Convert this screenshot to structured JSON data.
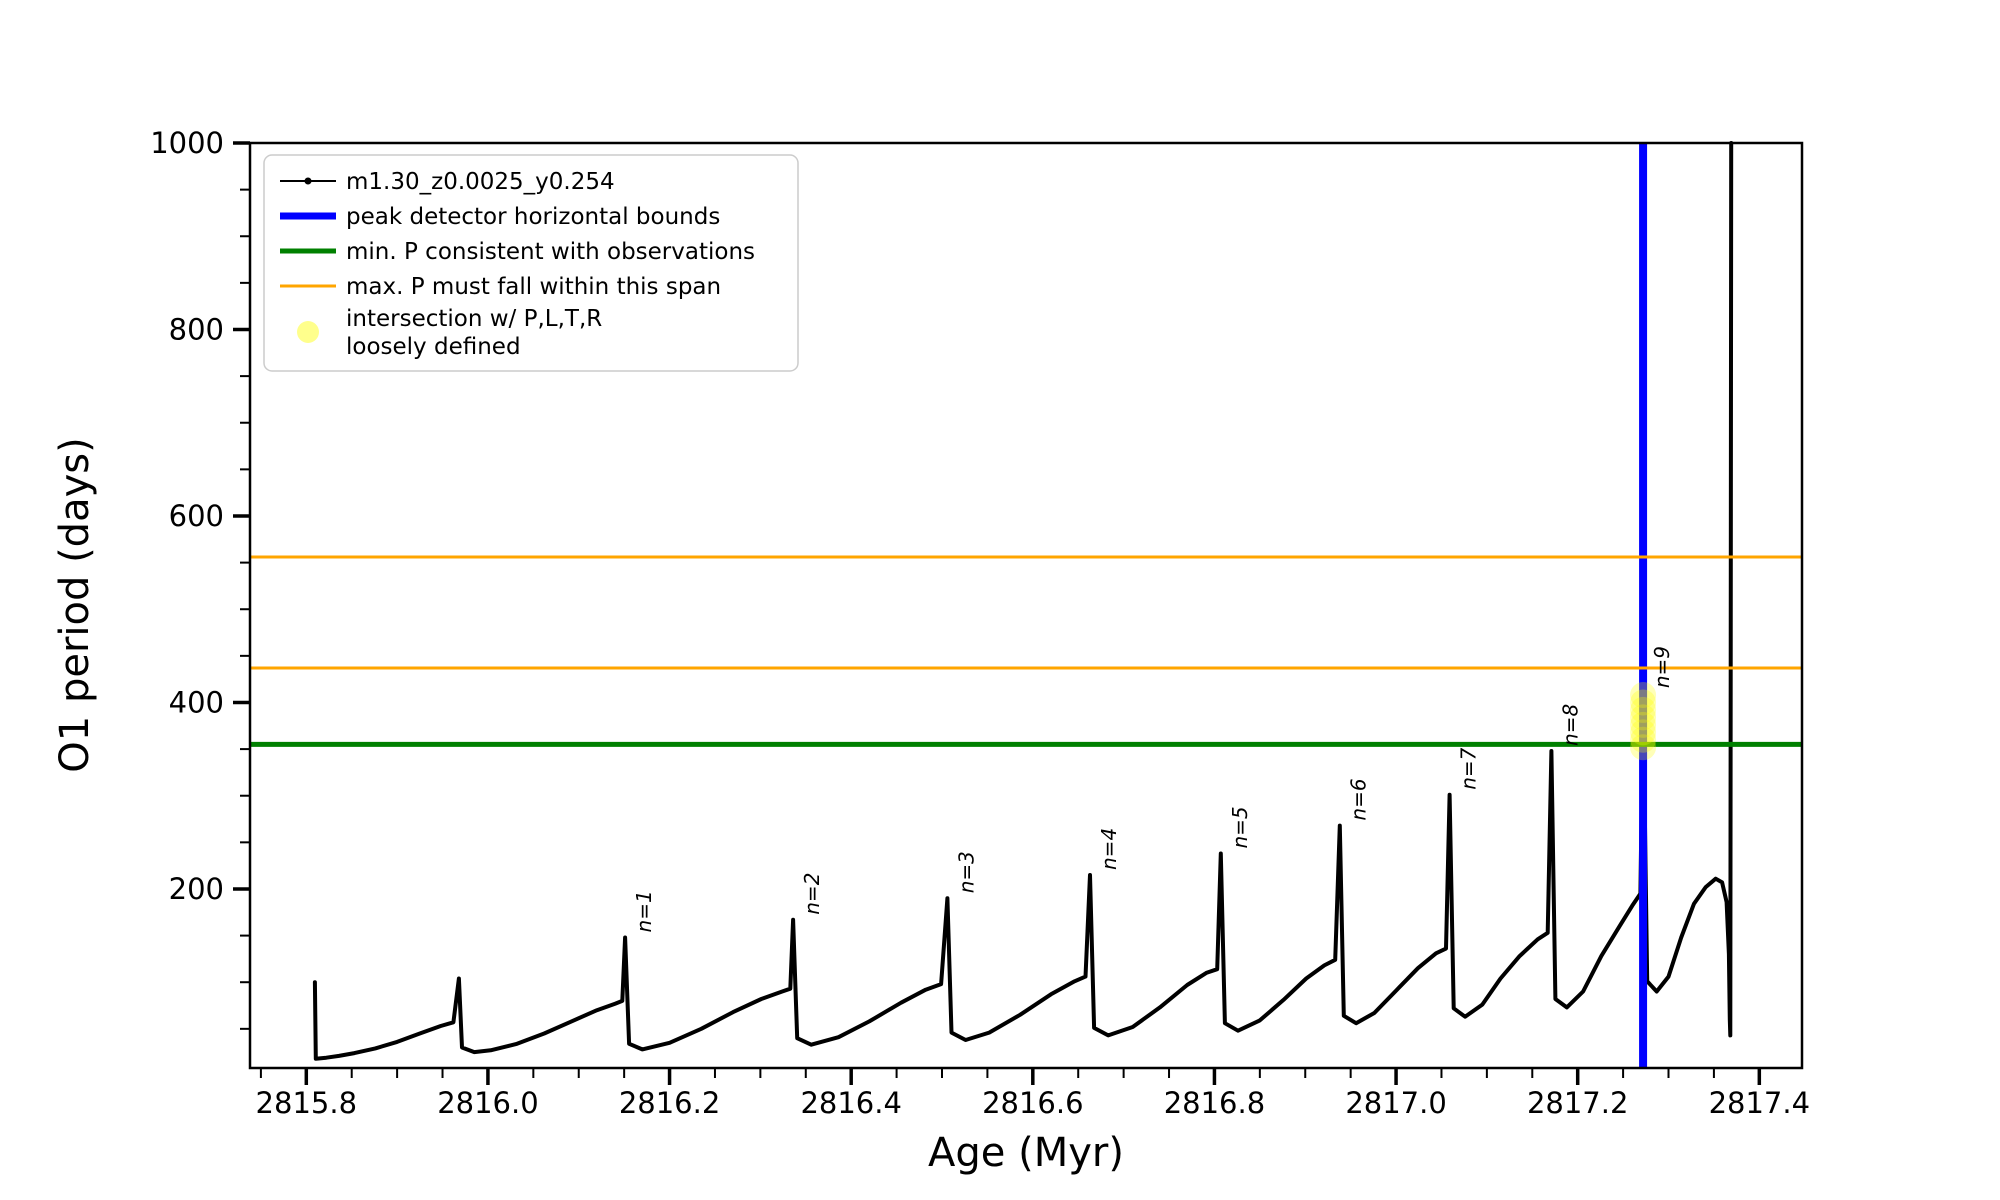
{
  "figure": {
    "xlabel": "Age (Myr)",
    "ylabel": "O1 period (days)",
    "background": "#ffffff",
    "spine_color": "#000000"
  },
  "axes": {
    "xlim": [
      2815.738,
      2817.447
    ],
    "ylim": [
      8,
      1000
    ],
    "x_major_ticks": [
      {
        "v": 2815.8,
        "label": "2815.8"
      },
      {
        "v": 2816.0,
        "label": "2816.0"
      },
      {
        "v": 2816.2,
        "label": "2816.2"
      },
      {
        "v": 2816.4,
        "label": "2816.4"
      },
      {
        "v": 2816.6,
        "label": "2816.6"
      },
      {
        "v": 2816.8,
        "label": "2816.8"
      },
      {
        "v": 2817.0,
        "label": "2817.0"
      },
      {
        "v": 2817.2,
        "label": "2817.2"
      },
      {
        "v": 2817.4,
        "label": "2817.4"
      }
    ],
    "x_minor_step": 0.05,
    "y_major_ticks": [
      {
        "v": 200,
        "label": "200"
      },
      {
        "v": 400,
        "label": "400"
      },
      {
        "v": 600,
        "label": "600"
      },
      {
        "v": 800,
        "label": "800"
      },
      {
        "v": 1000,
        "label": "1000"
      }
    ],
    "y_minor_step": 50,
    "grid": false
  },
  "legend": {
    "position": "upper-left",
    "items": [
      {
        "label": "m1.30_z0.0025_y0.254",
        "type": "line-dot",
        "color": "#000000",
        "lw": 2
      },
      {
        "label": "peak detector horizontal bounds",
        "type": "line",
        "color": "#0000ff",
        "lw": 7
      },
      {
        "label": "min. P consistent with observations",
        "type": "line",
        "color": "#008000",
        "lw": 5
      },
      {
        "label": "max. P must fall within this span",
        "type": "line",
        "color": "#ffa500",
        "lw": 3
      },
      {
        "label": "intersection w/ P,L,T,R\nloosely defined",
        "type": "marker",
        "color": "rgba(255,255,0,0.45)"
      }
    ]
  },
  "chart_data": {
    "type": "line",
    "title": "",
    "xlabel": "Age (Myr)",
    "ylabel": "O1 period (days)",
    "xlim": [
      2815.738,
      2817.447
    ],
    "ylim": [
      8,
      1000
    ],
    "series": [
      {
        "name": "m1.30_z0.0025_y0.254",
        "color": "#000000",
        "marker": "dot",
        "points": [
          [
            2815.8095,
            100
          ],
          [
            2815.8105,
            18
          ],
          [
            2815.822,
            19
          ],
          [
            2815.836,
            21
          ],
          [
            2815.853,
            24
          ],
          [
            2815.876,
            29
          ],
          [
            2815.9,
            36
          ],
          [
            2815.925,
            45
          ],
          [
            2815.948,
            53
          ],
          [
            2815.962,
            57
          ],
          [
            2815.968,
            104
          ],
          [
            2815.9715,
            30
          ],
          [
            2815.985,
            25
          ],
          [
            2816.003,
            27
          ],
          [
            2816.032,
            34
          ],
          [
            2816.062,
            45
          ],
          [
            2816.092,
            58
          ],
          [
            2816.12,
            70
          ],
          [
            2816.14,
            77
          ],
          [
            2816.148,
            80
          ],
          [
            2816.151,
            148
          ],
          [
            2816.1555,
            34
          ],
          [
            2816.17,
            28
          ],
          [
            2816.2,
            35
          ],
          [
            2816.235,
            50
          ],
          [
            2816.27,
            68
          ],
          [
            2816.301,
            82
          ],
          [
            2816.324,
            90
          ],
          [
            2816.333,
            93
          ],
          [
            2816.336,
            167
          ],
          [
            2816.3405,
            40
          ],
          [
            2816.356,
            33
          ],
          [
            2816.386,
            41
          ],
          [
            2816.42,
            58
          ],
          [
            2816.455,
            78
          ],
          [
            2816.482,
            92
          ],
          [
            2816.499,
            98
          ],
          [
            2816.506,
            190
          ],
          [
            2816.5105,
            46
          ],
          [
            2816.526,
            38
          ],
          [
            2816.552,
            46
          ],
          [
            2816.586,
            65
          ],
          [
            2816.62,
            87
          ],
          [
            2816.646,
            101
          ],
          [
            2816.658,
            106
          ],
          [
            2816.663,
            215
          ],
          [
            2816.6675,
            51
          ],
          [
            2816.683,
            43
          ],
          [
            2816.71,
            52
          ],
          [
            2816.74,
            73
          ],
          [
            2816.77,
            97
          ],
          [
            2816.791,
            110
          ],
          [
            2816.803,
            114
          ],
          [
            2816.807,
            238
          ],
          [
            2816.8115,
            56
          ],
          [
            2816.826,
            48
          ],
          [
            2816.85,
            59
          ],
          [
            2816.876,
            81
          ],
          [
            2816.901,
            104
          ],
          [
            2816.921,
            118
          ],
          [
            2816.933,
            124
          ],
          [
            2816.938,
            268
          ],
          [
            2816.9425,
            64
          ],
          [
            2816.956,
            56
          ],
          [
            2816.976,
            67
          ],
          [
            2817.0,
            91
          ],
          [
            2817.024,
            115
          ],
          [
            2817.044,
            131
          ],
          [
            2817.055,
            136
          ],
          [
            2817.059,
            301
          ],
          [
            2817.0635,
            72
          ],
          [
            2817.076,
            63
          ],
          [
            2817.095,
            76
          ],
          [
            2817.115,
            104
          ],
          [
            2817.136,
            128
          ],
          [
            2817.156,
            146
          ],
          [
            2817.167,
            153
          ],
          [
            2817.171,
            348
          ],
          [
            2817.1755,
            82
          ],
          [
            2817.188,
            73
          ],
          [
            2817.206,
            90
          ],
          [
            2817.226,
            128
          ],
          [
            2817.246,
            160
          ],
          [
            2817.26,
            182
          ],
          [
            2817.269,
            195
          ],
          [
            2817.272,
            410
          ],
          [
            2817.2765,
            101
          ],
          [
            2817.287,
            90
          ],
          [
            2817.3,
            106
          ],
          [
            2817.314,
            148
          ],
          [
            2817.328,
            184
          ],
          [
            2817.341,
            202
          ],
          [
            2817.352,
            211
          ],
          [
            2817.359,
            207
          ],
          [
            2817.364,
            186
          ],
          [
            2817.3665,
            130
          ],
          [
            2817.3675,
            60
          ],
          [
            2817.368,
            43
          ],
          [
            2817.3685,
            430
          ],
          [
            2817.369,
            1000
          ]
        ]
      }
    ],
    "hlines": [
      {
        "y": 556,
        "color": "#ffa500",
        "lw": 3,
        "role": "max. P must fall within this span (upper)"
      },
      {
        "y": 437,
        "color": "#ffa500",
        "lw": 3,
        "role": "max. P must fall within this span (lower)"
      },
      {
        "y": 355,
        "color": "#008000",
        "lw": 5,
        "role": "min. P consistent with observations"
      }
    ],
    "vlines": [
      {
        "x": 2817.272,
        "color": "#0000ff",
        "lw": 8,
        "role": "peak detector horizontal bounds"
      }
    ],
    "intersection_marker": {
      "x": 2817.272,
      "y_values": [
        352,
        360,
        368,
        376,
        384,
        392,
        400,
        408
      ],
      "radius_px": 13,
      "color": "rgba(255,255,0,0.28)",
      "role": "intersection w/ P,L,T,R loosely defined"
    },
    "pulse_labels": [
      {
        "text": "n=1",
        "x": 2816.151,
        "peak": 148
      },
      {
        "text": "n=2",
        "x": 2816.336,
        "peak": 167
      },
      {
        "text": "n=3",
        "x": 2816.506,
        "peak": 190
      },
      {
        "text": "n=4",
        "x": 2816.663,
        "peak": 215
      },
      {
        "text": "n=5",
        "x": 2816.807,
        "peak": 238
      },
      {
        "text": "n=6",
        "x": 2816.938,
        "peak": 268
      },
      {
        "text": "n=7",
        "x": 2817.059,
        "peak": 301
      },
      {
        "text": "n=8",
        "x": 2817.171,
        "peak": 348
      },
      {
        "text": "n=9",
        "x": 2817.272,
        "peak": 410
      }
    ],
    "legend_position": "upper-left"
  }
}
